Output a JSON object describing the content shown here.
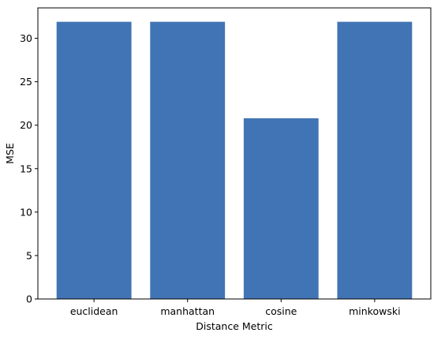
{
  "chart_data": {
    "type": "bar",
    "title": "",
    "xlabel": "Distance Metric",
    "ylabel": "MSE",
    "categories": [
      "euclidean",
      "manhattan",
      "cosine",
      "minkowski"
    ],
    "values": [
      31.9,
      31.9,
      20.8,
      31.9
    ],
    "ylim": [
      0,
      33.5
    ],
    "yticks": [
      0,
      5,
      10,
      15,
      20,
      25,
      30
    ],
    "bar_color": "#4174b4",
    "grid": false,
    "legend": "none"
  }
}
